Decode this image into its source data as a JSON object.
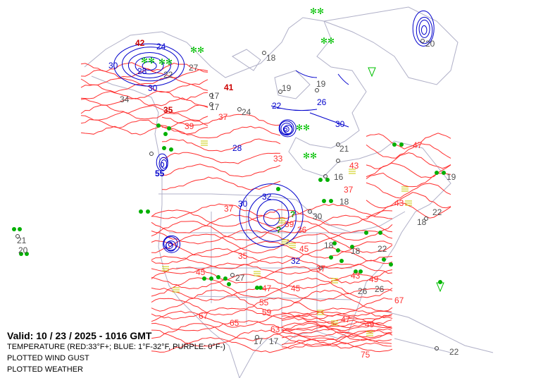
{
  "legend": {
    "valid": "Valid: 10 / 23 / 2025  -  1016 GMT",
    "temperature": "TEMPERATURE (RED:33°F+; BLUE: 1°F-32°F, PURPLE: 0°F-)",
    "wind_gust": "PLOTTED WIND GUST",
    "weather": "PLOTTED WEATHER"
  },
  "colors": {
    "red_contour": "#ff3030",
    "blue_contour": "#0000cc",
    "purple_contour": "#800080",
    "coastline": "#b0b0c8",
    "station_value": "#505050",
    "rain_dot": "#00b000",
    "snow_symbol": "#00c000",
    "fog_bars": "#c8c800"
  },
  "labels": [
    {
      "text": "41",
      "kind": "red-bold"
    },
    {
      "text": "35",
      "kind": "red-bold"
    },
    {
      "text": "42",
      "kind": "red-bold"
    },
    {
      "text": "37",
      "kind": "red"
    },
    {
      "text": "39",
      "kind": "red"
    },
    {
      "text": "33",
      "kind": "red"
    },
    {
      "text": "43",
      "kind": "red"
    },
    {
      "text": "47",
      "kind": "red"
    },
    {
      "text": "37",
      "kind": "red"
    },
    {
      "text": "36",
      "kind": "red"
    },
    {
      "text": "37",
      "kind": "red"
    },
    {
      "text": "35",
      "kind": "red"
    },
    {
      "text": "45",
      "kind": "red"
    },
    {
      "text": "47",
      "kind": "red"
    },
    {
      "text": "45",
      "kind": "red"
    },
    {
      "text": "55",
      "kind": "red"
    },
    {
      "text": "59",
      "kind": "red"
    },
    {
      "text": "63",
      "kind": "red"
    },
    {
      "text": "65",
      "kind": "red"
    },
    {
      "text": "67",
      "kind": "red"
    },
    {
      "text": "67",
      "kind": "red"
    },
    {
      "text": "49",
      "kind": "red"
    },
    {
      "text": "47",
      "kind": "red"
    },
    {
      "text": "43",
      "kind": "red"
    },
    {
      "text": "49",
      "kind": "red"
    },
    {
      "text": "75",
      "kind": "red"
    },
    {
      "text": "37",
      "kind": "red"
    },
    {
      "text": "39",
      "kind": "red"
    },
    {
      "text": "45",
      "kind": "red"
    },
    {
      "text": "43",
      "kind": "red"
    },
    {
      "text": "30",
      "kind": "blue"
    },
    {
      "text": "28",
      "kind": "blue"
    },
    {
      "text": "30",
      "kind": "blue"
    },
    {
      "text": "24",
      "kind": "blue"
    },
    {
      "text": "22",
      "kind": "blue"
    },
    {
      "text": "26",
      "kind": "blue"
    },
    {
      "text": "30",
      "kind": "blue"
    },
    {
      "text": "32",
      "kind": "blue"
    },
    {
      "text": "30",
      "kind": "blue"
    },
    {
      "text": "55",
      "kind": "blue-bold"
    },
    {
      "text": "28",
      "kind": "blue"
    },
    {
      "text": "32",
      "kind": "blue"
    },
    {
      "text": "18",
      "kind": "gray"
    },
    {
      "text": "19",
      "kind": "gray"
    },
    {
      "text": "17",
      "kind": "gray"
    },
    {
      "text": "17",
      "kind": "gray"
    },
    {
      "text": "24",
      "kind": "gray"
    },
    {
      "text": "19",
      "kind": "gray"
    },
    {
      "text": "30",
      "kind": "gray"
    },
    {
      "text": "27",
      "kind": "gray"
    },
    {
      "text": "17",
      "kind": "gray"
    },
    {
      "text": "18",
      "kind": "gray"
    },
    {
      "text": "22",
      "kind": "gray"
    },
    {
      "text": "20",
      "kind": "gray"
    },
    {
      "text": "22",
      "kind": "gray"
    },
    {
      "text": "21",
      "kind": "gray"
    },
    {
      "text": "20",
      "kind": "gray"
    },
    {
      "text": "19",
      "kind": "gray"
    },
    {
      "text": "26",
      "kind": "gray"
    },
    {
      "text": "18",
      "kind": "gray"
    },
    {
      "text": "21",
      "kind": "gray"
    },
    {
      "text": "16",
      "kind": "gray"
    },
    {
      "text": "22",
      "kind": "gray"
    },
    {
      "text": "34",
      "kind": "gray"
    },
    {
      "text": "18",
      "kind": "gray"
    },
    {
      "text": "27",
      "kind": "gray"
    },
    {
      "text": "17",
      "kind": "gray"
    },
    {
      "text": "22",
      "kind": "gray"
    },
    {
      "text": "18",
      "kind": "gray"
    },
    {
      "text": "26",
      "kind": "gray"
    },
    {
      "text": "?",
      "kind": "green-bold"
    },
    {
      "text": "?",
      "kind": "green-bold"
    }
  ]
}
